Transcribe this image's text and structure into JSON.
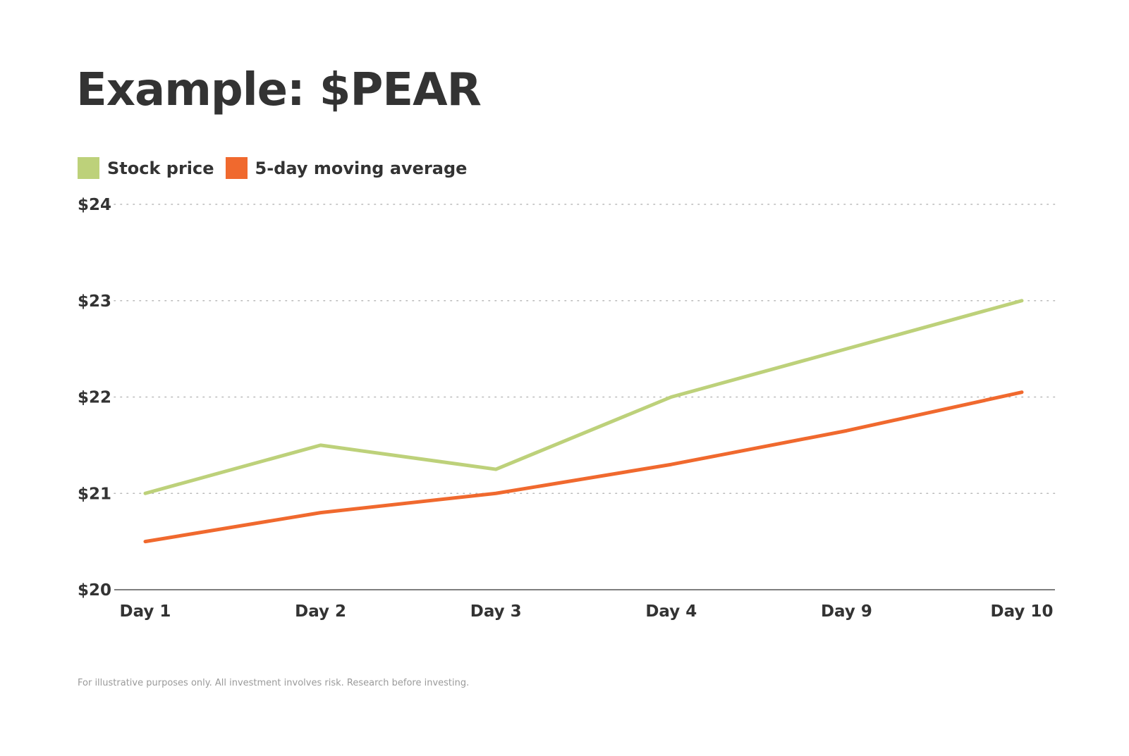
{
  "chart_data": {
    "type": "line",
    "title": "Example: $PEAR",
    "categories": [
      "Day 1",
      "Day 2",
      "Day 3",
      "Day 4",
      "Day 9",
      "Day 10"
    ],
    "series": [
      {
        "name": "Stock price",
        "color": "#bdd17a",
        "values": [
          21.0,
          21.5,
          21.25,
          22.0,
          22.5,
          23.0
        ]
      },
      {
        "name": "5-day moving average",
        "color": "#f0692e",
        "values": [
          20.5,
          20.8,
          21.0,
          21.3,
          21.65,
          22.05
        ]
      }
    ],
    "y_ticks": [
      "$20",
      "$21",
      "$22",
      "$23",
      "$24"
    ],
    "ylim": [
      20,
      24
    ],
    "grid": "horizontal dotted",
    "legend": "top-left",
    "xlabel": "",
    "ylabel": ""
  },
  "footnote": "For illustrative purposes only. All investment involves risk. Research before investing.",
  "colors": {
    "text": "#333333",
    "grid": "#b8b8b8",
    "axis": "#555555"
  }
}
